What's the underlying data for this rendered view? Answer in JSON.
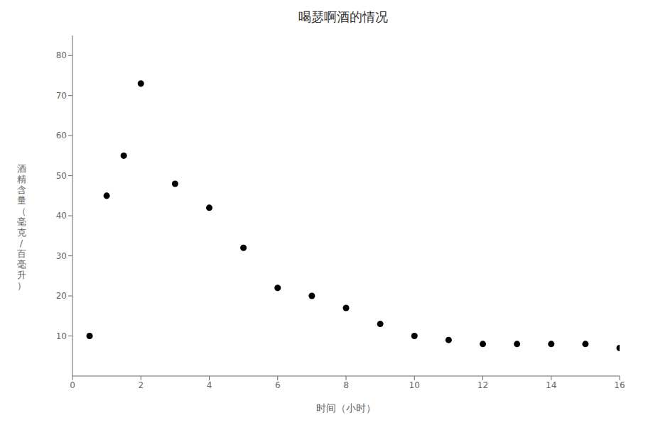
{
  "chart_data": {
    "type": "scatter",
    "title": "喝瑟啊酒的情况",
    "x_label": "时间（小时）",
    "y_label": "酒精含量（毫克/百毫升）",
    "x": [
      0.5,
      1.0,
      1.5,
      2.0,
      3.0,
      4.0,
      5.0,
      6.0,
      7.0,
      8.0,
      9.0,
      10.0,
      11.0,
      12.0,
      13.0,
      14.0,
      15.0,
      16.0
    ],
    "values": [
      10,
      45,
      55,
      73,
      48,
      42,
      32,
      22,
      20,
      17,
      13,
      10,
      9,
      8,
      8,
      8,
      8,
      7
    ],
    "xlim": [
      0,
      16
    ],
    "ylim": [
      0,
      85
    ],
    "xticks": [
      0,
      2,
      4,
      6,
      8,
      10,
      12,
      14,
      16
    ],
    "yticks": [
      10,
      20,
      30,
      40,
      50,
      60,
      70,
      80
    ],
    "color": "#000000",
    "marker": "circle",
    "grid": false
  }
}
